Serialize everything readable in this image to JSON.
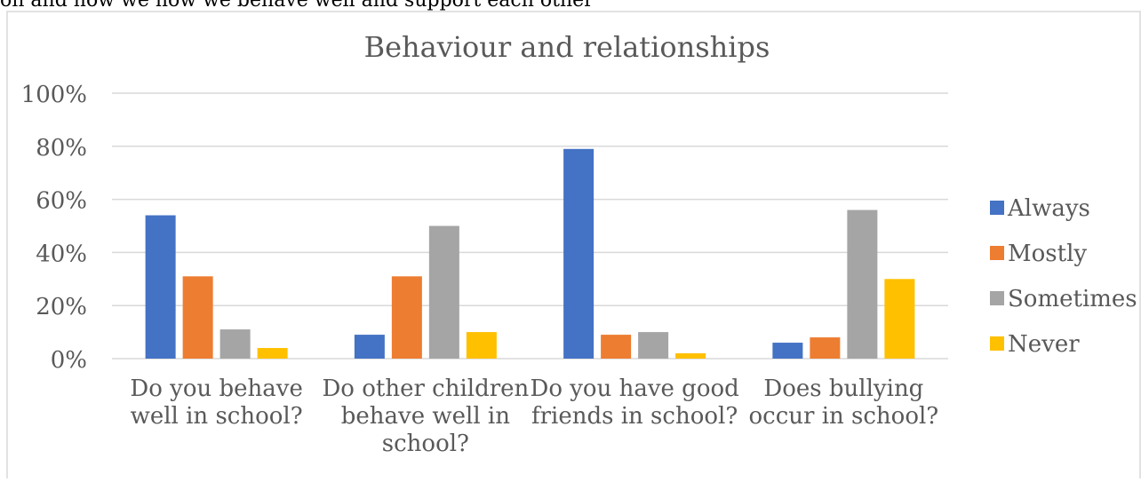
{
  "header_fragment": "on and how we how we behave well and support each other",
  "chart_data": {
    "type": "bar",
    "title": "Behaviour and relationships",
    "xlabel": "",
    "ylabel": "",
    "ylim": [
      0,
      100
    ],
    "yticks": [
      "0%",
      "20%",
      "40%",
      "60%",
      "80%",
      "100%"
    ],
    "grid": true,
    "legend_position": "right",
    "categories": [
      [
        "Do you behave",
        "well in school?"
      ],
      [
        "Do other children",
        "behave well in",
        "school?"
      ],
      [
        "Do you have good",
        "friends in school?"
      ],
      [
        "Does bullying",
        "occur in school?"
      ]
    ],
    "series": [
      {
        "name": "Always",
        "color": "#4472C4",
        "values": [
          54,
          9,
          79,
          6
        ]
      },
      {
        "name": "Mostly",
        "color": "#ED7D31",
        "values": [
          31,
          31,
          9,
          8
        ]
      },
      {
        "name": "Sometimes",
        "color": "#A5A5A5",
        "values": [
          11,
          50,
          10,
          56
        ]
      },
      {
        "name": "Never",
        "color": "#FFC000",
        "values": [
          4,
          10,
          2,
          30
        ]
      }
    ]
  }
}
